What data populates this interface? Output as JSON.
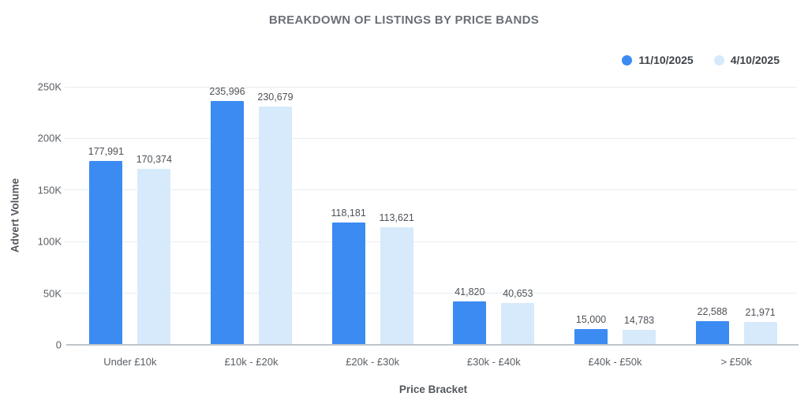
{
  "chart_data": {
    "type": "bar",
    "title": "BREAKDOWN OF LISTINGS BY PRICE BANDS",
    "xlabel": "Price Bracket",
    "ylabel": "Advert Volume",
    "categories": [
      "Under £10k",
      "£10k - £20k",
      "£20k - £30k",
      "£30k - £40k",
      "£40k - £50k",
      "> £50k"
    ],
    "series": [
      {
        "name": "11/10/2025",
        "color": "#3b8bf2",
        "values": [
          177991,
          235996,
          118181,
          41820,
          15000,
          22588
        ],
        "labels": [
          "177,991",
          "235,996",
          "118,181",
          "41,820",
          "15,000",
          "22,588"
        ]
      },
      {
        "name": "4/10/2025",
        "color": "#d6eafb",
        "values": [
          170374,
          230679,
          113621,
          40653,
          14783,
          21971
        ],
        "labels": [
          "170,374",
          "230,679",
          "113,621",
          "40,653",
          "14,783",
          "21,971"
        ]
      }
    ],
    "ylim": [
      0,
      250000
    ],
    "yticks": [
      {
        "value": 0,
        "label": "0"
      },
      {
        "value": 50000,
        "label": "50K"
      },
      {
        "value": 100000,
        "label": "100K"
      },
      {
        "value": 150000,
        "label": "150K"
      },
      {
        "value": 200000,
        "label": "200K"
      },
      {
        "value": 250000,
        "label": "250K"
      }
    ],
    "grid": true,
    "legend_position": "top-right"
  },
  "colors": {
    "background": "#ffffff",
    "gridline": "#e9edf0",
    "axis_line": "#c0c5ca",
    "title_text": "#6b7077",
    "tick_text": "#5a5f66",
    "value_label_text": "#4c5157",
    "legend_text": "#3e4349"
  }
}
